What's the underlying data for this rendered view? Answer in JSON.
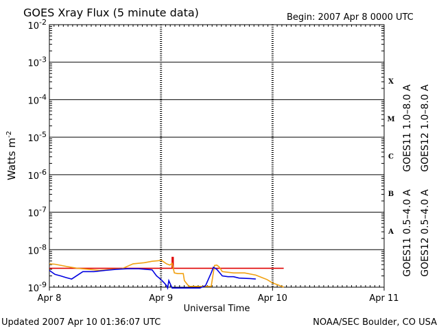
{
  "chart_data": {
    "type": "line",
    "title": "GOES Xray Flux (5 minute data)",
    "begin_label": "Begin:  2007 Apr 8 0000 UTC",
    "xlabel": "Universal Time",
    "ylabel_base": "Watts m",
    "ylabel_exp": "-2",
    "x_ticks": [
      "Apr 8",
      "Apr 9",
      "Apr 10",
      "Apr 11"
    ],
    "x_range_days": [
      0,
      3
    ],
    "y_scale": "log",
    "ylim": [
      1e-09,
      0.01
    ],
    "y_ticks": [
      {
        "base": "10",
        "exp": "-2"
      },
      {
        "base": "10",
        "exp": "-3"
      },
      {
        "base": "10",
        "exp": "-4"
      },
      {
        "base": "10",
        "exp": "-5"
      },
      {
        "base": "10",
        "exp": "-6"
      },
      {
        "base": "10",
        "exp": "-7"
      },
      {
        "base": "10",
        "exp": "-8"
      },
      {
        "base": "10",
        "exp": "-9"
      }
    ],
    "flare_classes": [
      "X",
      "M",
      "C",
      "B",
      "A"
    ],
    "legend_right_outer": [
      {
        "label": "GOES11 1.0–8.0 A",
        "color": "#6a2ca8"
      },
      {
        "label": "GOES11 0.5–4.0 A",
        "color": "#f0a010"
      }
    ],
    "legend_right_inner": [
      {
        "label": "GOES12 1.0–8.0 A",
        "color": "#e00000"
      },
      {
        "label": "GOES12 0.5–4.0 A",
        "color": "#0000e0"
      }
    ],
    "series": [
      {
        "name": "GOES12 1.0–8.0 A",
        "color": "#e00000",
        "points": [
          [
            0,
            3.2e-09
          ],
          [
            0.4,
            3.2e-09
          ],
          [
            0.85,
            3.2e-09
          ],
          [
            1.05,
            3.2e-09
          ],
          [
            1.1,
            3.2e-09
          ],
          [
            1.1,
            6.2e-09
          ],
          [
            1.11,
            6.2e-09
          ],
          [
            1.11,
            3.2e-09
          ],
          [
            1.5,
            3.2e-09
          ],
          [
            2.1,
            3.2e-09
          ]
        ]
      },
      {
        "name": "GOES11 0.5–4.0 A",
        "color": "#f0a010",
        "points": [
          [
            0,
            4.2e-09
          ],
          [
            0.05,
            4.1e-09
          ],
          [
            0.15,
            3.6e-09
          ],
          [
            0.25,
            3.2e-09
          ],
          [
            0.35,
            3e-09
          ],
          [
            0.45,
            2.8e-09
          ],
          [
            0.55,
            3e-09
          ],
          [
            0.65,
            3.1e-09
          ],
          [
            0.75,
            4.2e-09
          ],
          [
            0.85,
            4.5e-09
          ],
          [
            0.92,
            4.9e-09
          ],
          [
            0.98,
            5.1e-09
          ],
          [
            1.0,
            5.3e-09
          ],
          [
            1.05,
            4.2e-09
          ],
          [
            1.08,
            3.9e-09
          ],
          [
            1.1,
            4.3e-09
          ],
          [
            1.12,
            2.4e-09
          ],
          [
            1.15,
            2.3e-09
          ],
          [
            1.2,
            2.3e-09
          ],
          [
            1.21,
            1.5e-09
          ],
          [
            1.25,
            1.05e-09
          ],
          [
            1.35,
            1.05e-09
          ],
          [
            1.45,
            1.05e-09
          ],
          [
            1.48,
            3.8e-09
          ],
          [
            1.5,
            3.9e-09
          ],
          [
            1.52,
            3.5e-09
          ],
          [
            1.55,
            2.6e-09
          ],
          [
            1.65,
            2.4e-09
          ],
          [
            1.75,
            2.4e-09
          ],
          [
            1.85,
            2.1e-09
          ],
          [
            1.95,
            1.6e-09
          ],
          [
            2.0,
            1.3e-09
          ],
          [
            2.05,
            1.15e-09
          ],
          [
            2.1,
            1e-09
          ]
        ]
      },
      {
        "name": "GOES12 0.5–4.0 A",
        "color": "#0000e0",
        "points": [
          [
            0,
            2.8e-09
          ],
          [
            0.05,
            2.2e-09
          ],
          [
            0.1,
            2e-09
          ],
          [
            0.15,
            1.8e-09
          ],
          [
            0.2,
            1.65e-09
          ],
          [
            0.3,
            2.6e-09
          ],
          [
            0.4,
            2.6e-09
          ],
          [
            0.5,
            2.8e-09
          ],
          [
            0.6,
            3e-09
          ],
          [
            0.7,
            3.1e-09
          ],
          [
            0.8,
            3.1e-09
          ],
          [
            0.92,
            2.9e-09
          ],
          [
            0.96,
            2e-09
          ],
          [
            1.0,
            1.6e-09
          ],
          [
            1.03,
            1.3e-09
          ],
          [
            1.05,
            1.1e-09
          ],
          [
            1.06,
            9.5e-10
          ],
          [
            1.07,
            1.5e-09
          ],
          [
            1.1,
            9.5e-10
          ],
          [
            1.35,
            9.5e-10
          ],
          [
            1.4,
            1.1e-09
          ],
          [
            1.45,
            2.4e-09
          ],
          [
            1.47,
            3.4e-09
          ],
          [
            1.5,
            3e-09
          ],
          [
            1.55,
            2e-09
          ],
          [
            1.6,
            1.9e-09
          ],
          [
            1.65,
            1.9e-09
          ],
          [
            1.7,
            1.75e-09
          ],
          [
            1.8,
            1.7e-09
          ],
          [
            1.85,
            1.65e-09
          ]
        ]
      }
    ]
  },
  "footer": {
    "updated": "Updated 2007 Apr 10 01:36:07 UTC",
    "credit": "NOAA/SEC Boulder, CO USA"
  }
}
